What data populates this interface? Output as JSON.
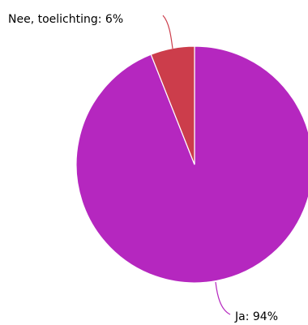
{
  "chart_data": {
    "type": "pie",
    "title": "",
    "slices": [
      {
        "label": "Ja: 94%",
        "name": "Ja",
        "value": 94,
        "color": "#b527bf"
      },
      {
        "label": "Nee, toelichting: 6%",
        "name": "Nee, toelichting",
        "value": 6,
        "color": "#cc3d4b"
      }
    ],
    "start_angle_deg": 0,
    "direction": "counterclockwise",
    "slice_border_color": "#ffffff",
    "leader_line_color": "matches slice color",
    "legend": "none"
  }
}
